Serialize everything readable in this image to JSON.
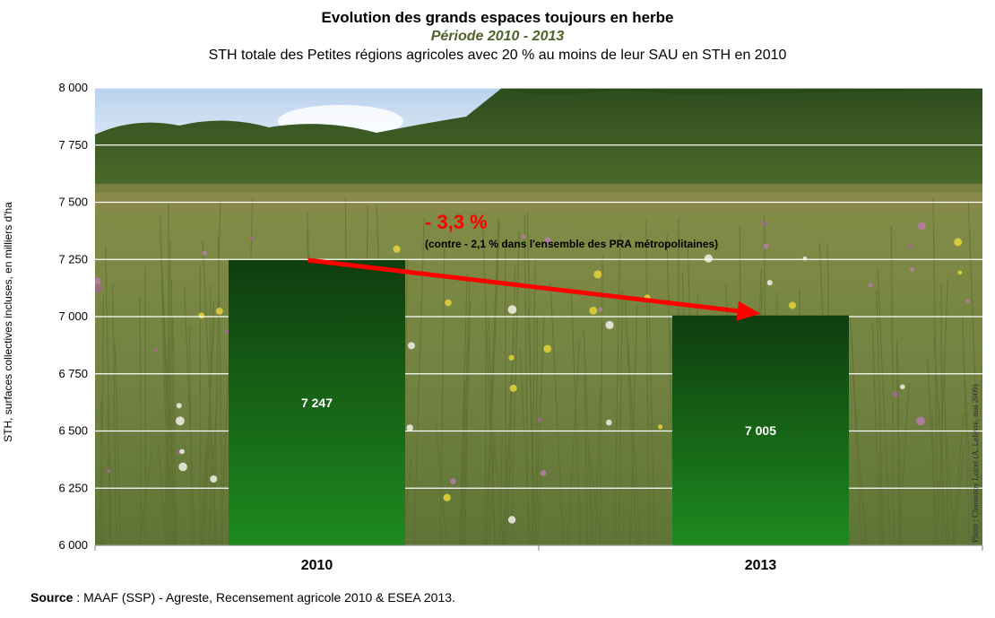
{
  "chart_data": {
    "type": "bar",
    "title": "Evolution des grands espaces toujours en herbe",
    "subtitle": "Période 2010 - 2013",
    "subtitle2": "STH totale des Petites régions agricoles avec 20 % au moins de leur SAU en STH en 2010",
    "ylabel": "STH, surfaces collectives incluses, en milliers d'ha",
    "xlabel": "",
    "categories": [
      "2010",
      "2013"
    ],
    "values": [
      7247,
      7005
    ],
    "value_labels": [
      "7 247",
      "7 005"
    ],
    "ylim": [
      6000,
      8000
    ],
    "yticks": [
      6000,
      6250,
      6500,
      6750,
      7000,
      7250,
      7500,
      7750,
      8000
    ],
    "ytick_labels": [
      "6 000",
      "6 250",
      "6 500",
      "6 750",
      "7 000",
      "7 250",
      "7 500",
      "7 750",
      "8 000"
    ],
    "grid": true,
    "bar_color_top": "#0f3d0f",
    "bar_color_bottom": "#1e8a1e",
    "arrow_color": "#ff0000",
    "annotation_main": "- 3,3 %",
    "annotation_sub": "(contre - 2,1 % dans l'ensemble des PRA métropolitaines)",
    "photo_credit": "Photo : Chantenoy Loiret (A. Lefèvre, mai 2009)"
  },
  "source": {
    "label": "Source",
    "text": " : MAAF (SSP) - Agreste, Recensement agricole 2010 & ESEA 2013."
  }
}
